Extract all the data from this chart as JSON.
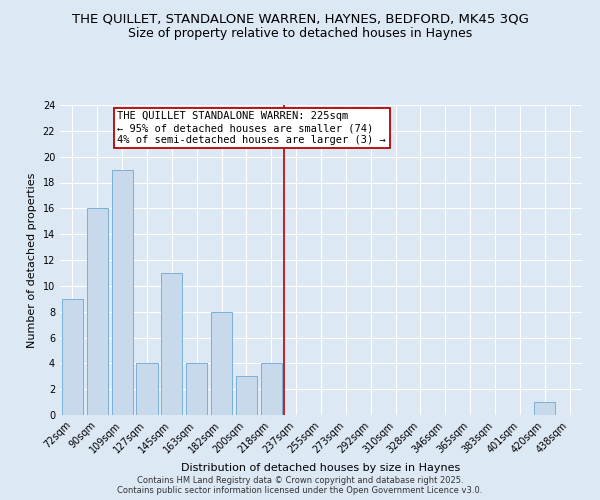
{
  "title": "THE QUILLET, STANDALONE WARREN, HAYNES, BEDFORD, MK45 3QG",
  "subtitle": "Size of property relative to detached houses in Haynes",
  "xlabel": "Distribution of detached houses by size in Haynes",
  "ylabel": "Number of detached properties",
  "categories": [
    "72sqm",
    "90sqm",
    "109sqm",
    "127sqm",
    "145sqm",
    "163sqm",
    "182sqm",
    "200sqm",
    "218sqm",
    "237sqm",
    "255sqm",
    "273sqm",
    "292sqm",
    "310sqm",
    "328sqm",
    "346sqm",
    "365sqm",
    "383sqm",
    "401sqm",
    "420sqm",
    "438sqm"
  ],
  "values": [
    9,
    16,
    19,
    4,
    11,
    4,
    8,
    3,
    4,
    0,
    0,
    0,
    0,
    0,
    0,
    0,
    0,
    0,
    0,
    1,
    0
  ],
  "bar_color": "#c8d9ec",
  "bar_edge_color": "#7aafd4",
  "bar_edge_width": 0.7,
  "vline_x": 8.5,
  "vline_color": "#bb0000",
  "annotation_lines": [
    "THE QUILLET STANDALONE WARREN: 225sqm",
    "← 95% of detached houses are smaller (74)",
    "4% of semi-detached houses are larger (3) →"
  ],
  "annotation_box_facecolor": "#ffffff",
  "annotation_box_edgecolor": "#bb0000",
  "ylim": [
    0,
    24
  ],
  "yticks": [
    0,
    2,
    4,
    6,
    8,
    10,
    12,
    14,
    16,
    18,
    20,
    22,
    24
  ],
  "background_color": "#dde8f5",
  "plot_background_color": "#dde8f5",
  "grid_color": "#ffffff",
  "title_fontsize": 9.5,
  "subtitle_fontsize": 9,
  "axis_label_fontsize": 8,
  "tick_fontsize": 7,
  "annot_fontsize": 7.5,
  "footer_line1": "Contains HM Land Registry data © Crown copyright and database right 2025.",
  "footer_line2": "Contains public sector information licensed under the Open Government Licence v3.0."
}
